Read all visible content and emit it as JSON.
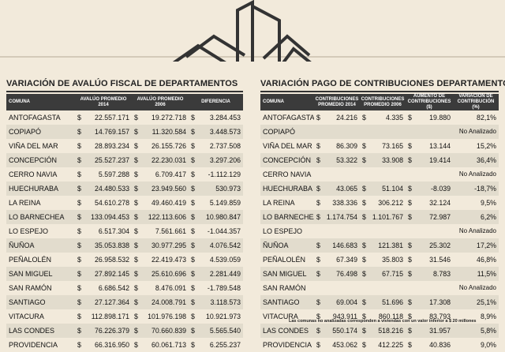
{
  "left": {
    "title": "VARIACIÓN DE AVALÚO FISCAL DE DEPARTAMENTOS",
    "headers": [
      "COMUNA",
      "AVALÚO PROMEDIO 2014",
      "AVALÚO PROMEDIO 2006",
      "DIFERENCIA"
    ],
    "rows": [
      {
        "comuna": "Antofagasta",
        "v2014": "22.557.171",
        "v2006": "19.272.718",
        "diff": "3.284.453"
      },
      {
        "comuna": "Copiapó",
        "v2014": "14.769.157",
        "v2006": "11.320.584",
        "diff": "3.448.573"
      },
      {
        "comuna": "Viña del Mar",
        "v2014": "28.893.234",
        "v2006": "26.155.726",
        "diff": "2.737.508"
      },
      {
        "comuna": "Concepción",
        "v2014": "25.527.237",
        "v2006": "22.230.031",
        "diff": "3.297.206"
      },
      {
        "comuna": "Cerro Navia",
        "v2014": "5.597.288",
        "v2006": "6.709.417",
        "diff": "-1.112.129"
      },
      {
        "comuna": "Huechuraba",
        "v2014": "24.480.533",
        "v2006": "23.949.560",
        "diff": "530.973"
      },
      {
        "comuna": "La Reina",
        "v2014": "54.610.278",
        "v2006": "49.460.419",
        "diff": "5.149.859"
      },
      {
        "comuna": "Lo Barnechea",
        "v2014": "133.094.453",
        "v2006": "122.113.606",
        "diff": "10.980.847"
      },
      {
        "comuna": "Lo Espejo",
        "v2014": "6.517.304",
        "v2006": "7.561.661",
        "diff": "-1.044.357"
      },
      {
        "comuna": "Ñuñoa",
        "v2014": "35.053.838",
        "v2006": "30.977.295",
        "diff": "4.076.542"
      },
      {
        "comuna": "Peñalolén",
        "v2014": "26.958.532",
        "v2006": "22.419.473",
        "diff": "4.539.059"
      },
      {
        "comuna": "San Miguel",
        "v2014": "27.892.145",
        "v2006": "25.610.696",
        "diff": "2.281.449"
      },
      {
        "comuna": "San Ramón",
        "v2014": "6.686.542",
        "v2006": "8.476.091",
        "diff": "-1.789.548"
      },
      {
        "comuna": "Santiago",
        "v2014": "27.127.364",
        "v2006": "24.008.791",
        "diff": "3.118.573"
      },
      {
        "comuna": "Vitacura",
        "v2014": "112.898.171",
        "v2006": "101.976.198",
        "diff": "10.921.973"
      },
      {
        "comuna": "Las Condes",
        "v2014": "76.226.379",
        "v2006": "70.660.839",
        "diff": "5.565.540"
      },
      {
        "comuna": "Providencia",
        "v2014": "66.316.950",
        "v2006": "60.061.713",
        "diff": "6.255.237"
      }
    ]
  },
  "right": {
    "title": "VARIACIÓN PAGO DE CONTRIBUCIONES DEPARTAMENTOS",
    "headers": [
      "COMUNA",
      "CONTRIBUCIONES PROMEDIO 2014",
      "CONTRIBUCIONES PROMEDIO 2006",
      "AUMENTO DE CONTRIBUCIONES ($)",
      "VARIACIÓN DE CONTRIBUCIÓN (%)"
    ],
    "rows": [
      {
        "comuna": "Antofagasta",
        "c2014": "24.216",
        "c2006": "4.335",
        "aum": "19.880",
        "var": "82,1%"
      },
      {
        "comuna": "Copiapó",
        "na": "No Analizado"
      },
      {
        "comuna": "Viña del Mar",
        "c2014": "86.309",
        "c2006": "73.165",
        "aum": "13.144",
        "var": "15,2%"
      },
      {
        "comuna": "Concepción",
        "c2014": "53.322",
        "c2006": "33.908",
        "aum": "19.414",
        "var": "36,4%"
      },
      {
        "comuna": "Cerro Navia",
        "na": "No Analizado"
      },
      {
        "comuna": "Huechuraba",
        "c2014": "43.065",
        "c2006": "51.104",
        "aum": "-8.039",
        "var": "-18,7%"
      },
      {
        "comuna": "La Reina",
        "c2014": "338.336",
        "c2006": "306.212",
        "aum": "32.124",
        "var": "9,5%"
      },
      {
        "comuna": "Lo Barnechea",
        "c2014": "1.174.754",
        "c2006": "1.101.767",
        "aum": "72.987",
        "var": "6,2%"
      },
      {
        "comuna": "Lo Espejo",
        "na": "No Analizado"
      },
      {
        "comuna": "Ñuñoa",
        "c2014": "146.683",
        "c2006": "121.381",
        "aum": "25.302",
        "var": "17,2%"
      },
      {
        "comuna": "Peñalolén",
        "c2014": "67.349",
        "c2006": "35.803",
        "aum": "31.546",
        "var": "46,8%"
      },
      {
        "comuna": "San Miguel",
        "c2014": "76.498",
        "c2006": "67.715",
        "aum": "8.783",
        "var": "11,5%"
      },
      {
        "comuna": "San Ramón",
        "na": "No Analizado"
      },
      {
        "comuna": "Santiago",
        "c2014": "69.004",
        "c2006": "51.696",
        "aum": "17.308",
        "var": "25,1%"
      },
      {
        "comuna": "Vitacura",
        "c2014": "943.911",
        "c2006": "860.118",
        "aum": "83.793",
        "var": "8,9%"
      },
      {
        "comuna": "Las Condes",
        "c2014": "550.174",
        "c2006": "518.216",
        "aum": "31.957",
        "var": "5,8%"
      },
      {
        "comuna": "Providencia",
        "c2014": "453.062",
        "c2006": "412.225",
        "aum": "40.836",
        "var": "9,0%"
      }
    ],
    "note": "Las comunas no analizadas corresponden a viviendas con un valor inferior a $ 20 millones"
  },
  "currency": "$",
  "colors": {
    "background": "#f2eadb",
    "header": "#3b3b3b",
    "alt_row": "#e2dccd",
    "line": "#333333"
  },
  "illustration": "buildings-outline-icon"
}
